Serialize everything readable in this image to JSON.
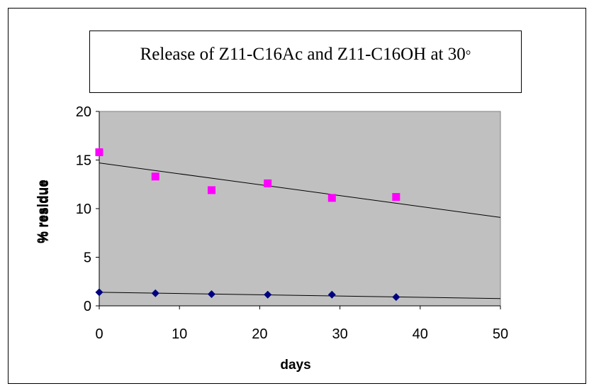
{
  "chart_data": {
    "type": "scatter",
    "title": "Release of Z11-C16Ac and Z11-C16OH at 30",
    "title_degree_symbol": "°",
    "xlabel": "days",
    "ylabels": [
      "% residue",
      "% residue"
    ],
    "xlim": [
      0,
      50
    ],
    "ylim": [
      0,
      20
    ],
    "x_ticks": [
      0,
      10,
      20,
      30,
      40,
      50
    ],
    "y_ticks": [
      0,
      5,
      10,
      15,
      20
    ],
    "x_tick_labels": [
      "0",
      "10",
      "20",
      "30",
      "40",
      "50"
    ],
    "y_tick_labels": [
      "0",
      "5",
      "10",
      "15",
      "20"
    ],
    "grid": false,
    "plot_background": "#c0c0c0",
    "series": [
      {
        "marker": "diamond",
        "color": "#000080",
        "x": [
          0,
          7,
          14,
          21,
          29,
          37
        ],
        "y": [
          1.4,
          1.3,
          1.2,
          1.15,
          1.15,
          0.9
        ],
        "trendline": {
          "x": [
            0,
            50
          ],
          "y": [
            1.4,
            0.75
          ]
        }
      },
      {
        "marker": "square",
        "color": "#ff00ff",
        "x": [
          0,
          7,
          14,
          21,
          29,
          37
        ],
        "y": [
          15.8,
          13.3,
          11.9,
          12.6,
          11.1,
          11.2
        ],
        "trendline": {
          "x": [
            0,
            50
          ],
          "y": [
            14.7,
            9.1
          ]
        }
      }
    ]
  }
}
